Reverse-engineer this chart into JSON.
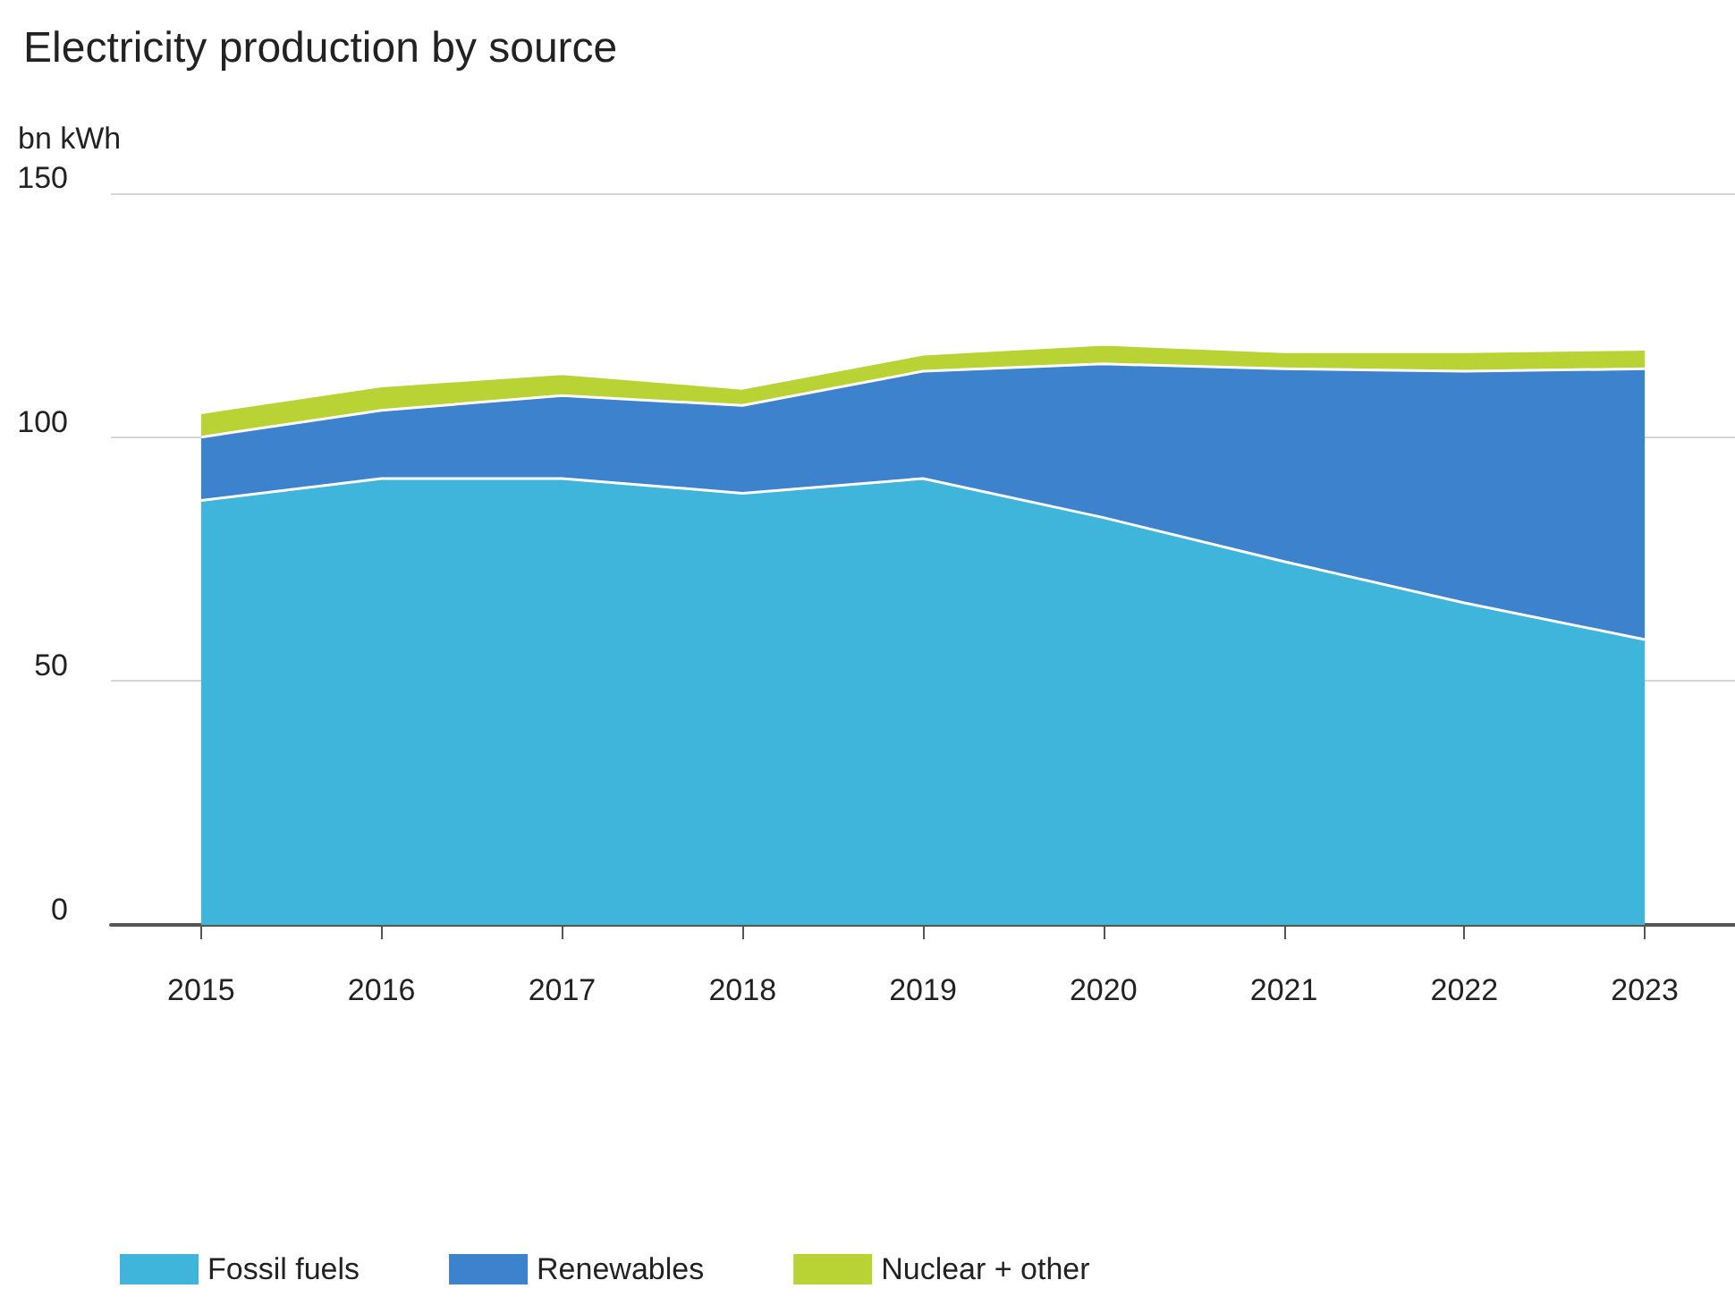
{
  "chart_data": {
    "type": "area",
    "title": "Electricity production by source",
    "ylabel": "bn kWh",
    "categories": [
      "2015",
      "2016",
      "2017",
      "2018",
      "2019",
      "2020",
      "2021",
      "2022",
      "2023"
    ],
    "stacked": true,
    "series": [
      {
        "name": "Fossil fuels",
        "color": "#3fb5db",
        "values": [
          87,
          91.5,
          91.5,
          88.5,
          91.5,
          83.5,
          74.5,
          66,
          58.5
        ]
      },
      {
        "name": "Renewables",
        "color": "#3d82cc",
        "values": [
          13,
          14,
          17,
          18,
          22,
          31.5,
          39.5,
          47.5,
          55.5
        ]
      },
      {
        "name": "Nuclear + other",
        "color": "#b9d234",
        "values": [
          5,
          5,
          4.5,
          3.5,
          3.5,
          4,
          3.5,
          4,
          4
        ]
      }
    ],
    "ylim": [
      0,
      150
    ],
    "yticks": [
      0,
      50,
      100,
      150
    ],
    "grid": "y",
    "legend": "bottom left"
  }
}
